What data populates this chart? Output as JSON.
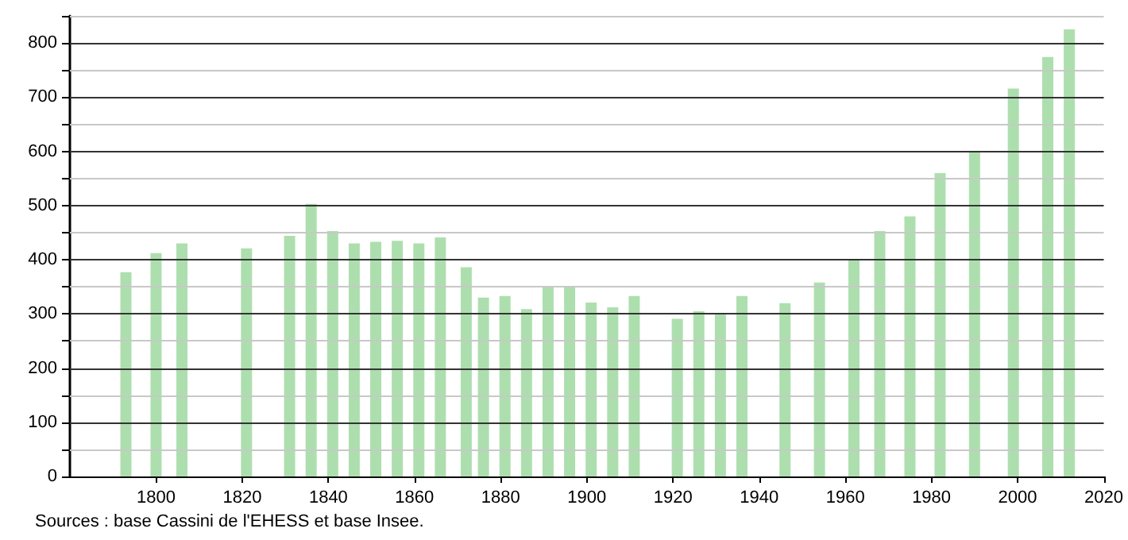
{
  "chart_data": {
    "type": "bar",
    "x": [
      1793,
      1800,
      1806,
      1821,
      1831,
      1836,
      1841,
      1846,
      1851,
      1856,
      1861,
      1866,
      1872,
      1876,
      1881,
      1886,
      1891,
      1896,
      1901,
      1906,
      1911,
      1921,
      1926,
      1931,
      1936,
      1946,
      1954,
      1962,
      1968,
      1975,
      1982,
      1990,
      1999,
      2007,
      2012
    ],
    "values": [
      377,
      412,
      430,
      421,
      444,
      503,
      453,
      430,
      433,
      435,
      430,
      441,
      386,
      330,
      333,
      309,
      349,
      349,
      321,
      312,
      333,
      291,
      305,
      300,
      333,
      320,
      358,
      400,
      453,
      480,
      560,
      600,
      716,
      774,
      825
    ],
    "color": "#addfae",
    "xlim": [
      1780,
      2020
    ],
    "xticks": [
      1800,
      1820,
      1840,
      1860,
      1880,
      1900,
      1920,
      1940,
      1960,
      1980,
      2000,
      2020
    ],
    "ylim": [
      0,
      850
    ],
    "yticks": [
      0,
      {
        "value": 50,
        "label": null
      },
      100,
      {
        "value": 150,
        "label": null
      },
      200,
      {
        "value": 250,
        "label": null
      },
      300,
      {
        "value": 350,
        "label": null
      },
      400,
      {
        "value": 450,
        "label": null
      },
      500,
      {
        "value": 550,
        "label": null
      },
      600,
      {
        "value": 650,
        "label": null
      },
      700,
      {
        "value": 750,
        "label": null
      },
      800,
      {
        "value": 850,
        "label": null
      }
    ],
    "grid": "y",
    "annotations": [
      "Sources : base Cassini de l'EHESS et base Insee."
    ]
  }
}
